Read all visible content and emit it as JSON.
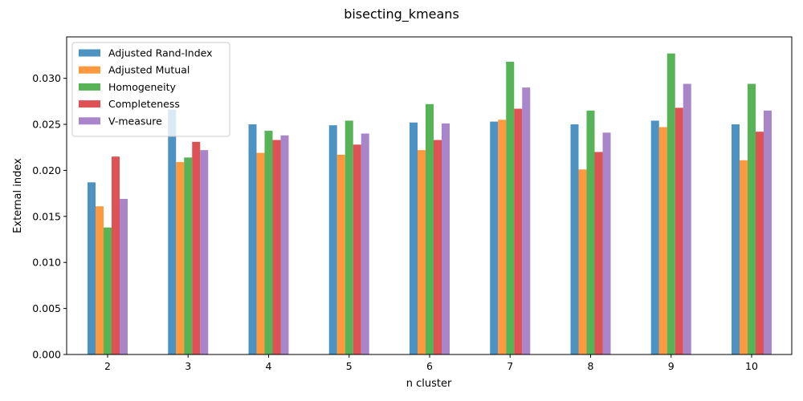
{
  "chart_data": {
    "type": "bar",
    "title": "bisecting_kmeans",
    "xlabel": "n cluster",
    "ylabel": "External index",
    "categories": [
      "2",
      "3",
      "4",
      "5",
      "6",
      "7",
      "8",
      "9",
      "10"
    ],
    "ylim": [
      0,
      0.0345
    ],
    "yticks": [
      0.0,
      0.005,
      0.01,
      0.015,
      0.02,
      0.025,
      0.03
    ],
    "ytick_labels": [
      "0.000",
      "0.005",
      "0.010",
      "0.015",
      "0.020",
      "0.025",
      "0.030"
    ],
    "grid": false,
    "legend_position": "top-left",
    "series": [
      {
        "name": "Adjusted Rand-Index",
        "color": "#1f77b4",
        "values": [
          0.0187,
          0.0266,
          0.025,
          0.0249,
          0.0252,
          0.0253,
          0.025,
          0.0254,
          0.025
        ]
      },
      {
        "name": "Adjusted Mutual",
        "color": "#ff7f0e",
        "values": [
          0.0161,
          0.0209,
          0.0219,
          0.0217,
          0.0222,
          0.0255,
          0.0201,
          0.0247,
          0.0211
        ]
      },
      {
        "name": "Homogeneity",
        "color": "#2ca02c",
        "values": [
          0.0138,
          0.0214,
          0.0243,
          0.0254,
          0.0272,
          0.0318,
          0.0265,
          0.0327,
          0.0294
        ]
      },
      {
        "name": "Completeness",
        "color": "#d62728",
        "values": [
          0.0215,
          0.0231,
          0.0233,
          0.0228,
          0.0233,
          0.0267,
          0.022,
          0.0268,
          0.0242
        ]
      },
      {
        "name": "V-measure",
        "color": "#9467bd",
        "values": [
          0.0169,
          0.0222,
          0.0238,
          0.024,
          0.0251,
          0.029,
          0.0241,
          0.0294,
          0.0265
        ]
      }
    ],
    "bar_alpha": 0.8
  }
}
